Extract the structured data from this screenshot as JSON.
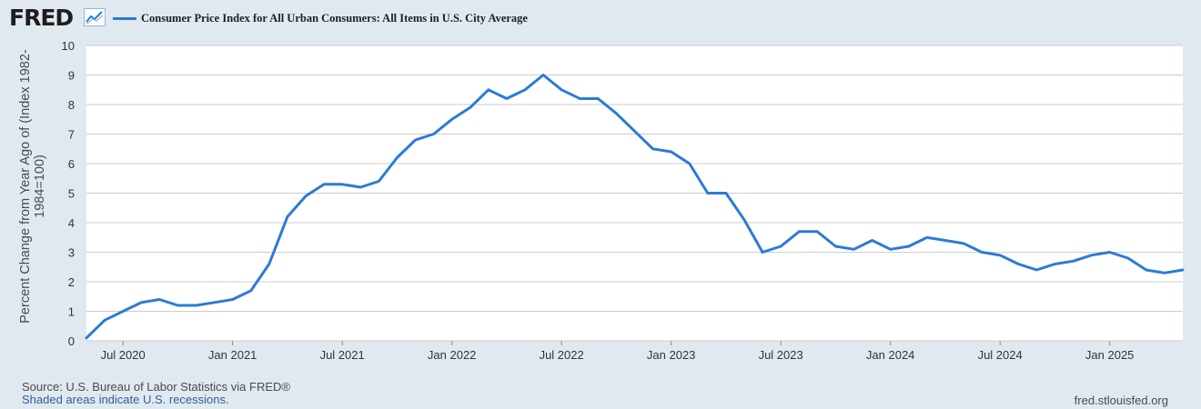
{
  "header": {
    "logo_text": "FRED",
    "logo_icon": "chart-line-icon",
    "legend_label": "Consumer Price Index for All Urban Consumers: All Items in U.S. City Average",
    "legend_color": "#2b7bd6"
  },
  "footer": {
    "source": "Source: U.S. Bureau of Labor Statistics via FRED®",
    "shaded": "Shaded areas indicate U.S. recessions.",
    "url": "fred.stlouisfed.org"
  },
  "chart_data": {
    "type": "line",
    "title": "",
    "ylabel": "Percent Change from Year Ago of (Index 1982-1984=100)",
    "xlabel": "",
    "ylim": [
      0,
      10
    ],
    "yticks": [
      "0",
      "1",
      "2",
      "3",
      "4",
      "5",
      "6",
      "7",
      "8",
      "9",
      "10"
    ],
    "xlim": [
      "2020-05",
      "2025-05"
    ],
    "xticks": [
      {
        "label": "Jul 2020",
        "date": "2020-07"
      },
      {
        "label": "Jan 2021",
        "date": "2021-01"
      },
      {
        "label": "Jul 2021",
        "date": "2021-07"
      },
      {
        "label": "Jan 2022",
        "date": "2022-01"
      },
      {
        "label": "Jul 2022",
        "date": "2022-07"
      },
      {
        "label": "Jan 2023",
        "date": "2023-01"
      },
      {
        "label": "Jul 2023",
        "date": "2023-07"
      },
      {
        "label": "Jan 2024",
        "date": "2024-01"
      },
      {
        "label": "Jul 2024",
        "date": "2024-07"
      },
      {
        "label": "Jan 2025",
        "date": "2025-01"
      }
    ],
    "grid": true,
    "legend_position": "top-left",
    "series": [
      {
        "color": "#2b7bd6",
        "x": [
          "2020-05",
          "2020-06",
          "2020-07",
          "2020-08",
          "2020-09",
          "2020-10",
          "2020-11",
          "2020-12",
          "2021-01",
          "2021-02",
          "2021-03",
          "2021-04",
          "2021-05",
          "2021-06",
          "2021-07",
          "2021-08",
          "2021-09",
          "2021-10",
          "2021-11",
          "2021-12",
          "2022-01",
          "2022-02",
          "2022-03",
          "2022-04",
          "2022-05",
          "2022-06",
          "2022-07",
          "2022-08",
          "2022-09",
          "2022-10",
          "2022-11",
          "2022-12",
          "2023-01",
          "2023-02",
          "2023-03",
          "2023-04",
          "2023-05",
          "2023-06",
          "2023-07",
          "2023-08",
          "2023-09",
          "2023-10",
          "2023-11",
          "2023-12",
          "2024-01",
          "2024-02",
          "2024-03",
          "2024-04",
          "2024-05",
          "2024-06",
          "2024-07",
          "2024-08",
          "2024-09",
          "2024-10",
          "2024-11",
          "2024-12",
          "2025-01",
          "2025-02",
          "2025-03",
          "2025-04",
          "2025-05"
        ],
        "y": [
          0.1,
          0.7,
          1.0,
          1.3,
          1.4,
          1.2,
          1.2,
          1.3,
          1.4,
          1.7,
          2.6,
          4.2,
          4.9,
          5.3,
          5.3,
          5.2,
          5.4,
          6.2,
          6.8,
          7.0,
          7.5,
          7.9,
          8.5,
          8.2,
          8.5,
          9.0,
          8.5,
          8.2,
          8.2,
          7.7,
          7.1,
          6.5,
          6.4,
          6.0,
          5.0,
          5.0,
          4.1,
          3.0,
          3.2,
          3.7,
          3.7,
          3.2,
          3.1,
          3.4,
          3.1,
          3.2,
          3.5,
          3.4,
          3.3,
          3.0,
          2.9,
          2.6,
          2.4,
          2.6,
          2.7,
          2.9,
          3.0,
          2.8,
          2.4,
          2.3,
          2.4
        ]
      }
    ]
  }
}
